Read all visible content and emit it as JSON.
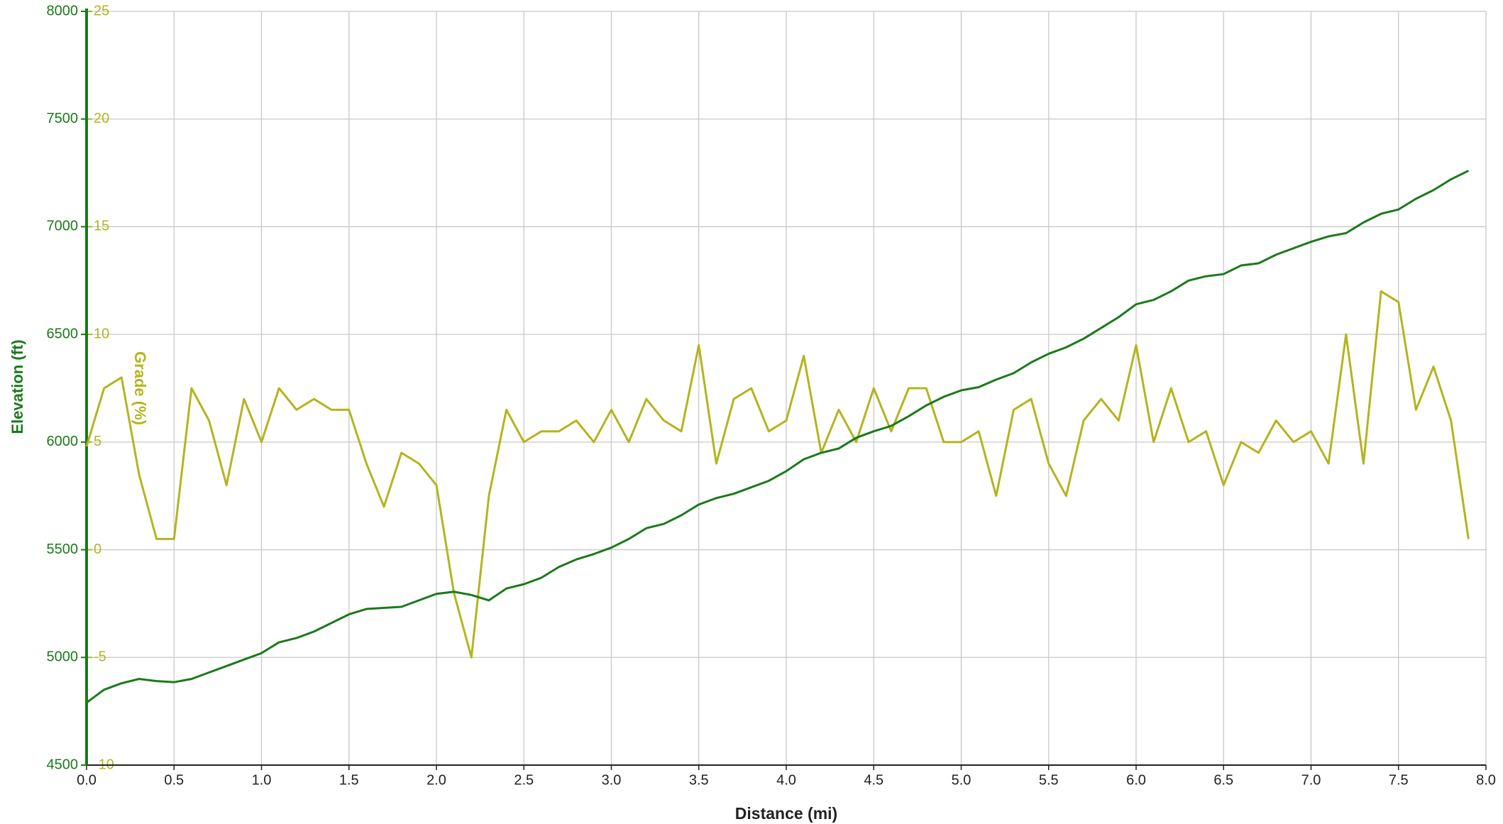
{
  "chart_data": {
    "type": "line",
    "xlabel": "Distance (mi)",
    "ylabel": "Elevation (ft)",
    "y2label": "Grade (%)",
    "grid": true,
    "x": [
      0.0,
      0.1,
      0.2,
      0.3,
      0.4,
      0.5,
      0.6,
      0.7,
      0.8,
      0.9,
      1.0,
      1.1,
      1.2,
      1.3,
      1.4,
      1.5,
      1.6,
      1.7,
      1.8,
      1.9,
      2.0,
      2.1,
      2.2,
      2.3,
      2.4,
      2.5,
      2.6,
      2.7,
      2.8,
      2.9,
      3.0,
      3.1,
      3.2,
      3.3,
      3.4,
      3.5,
      3.6,
      3.7,
      3.8,
      3.9,
      4.0,
      4.1,
      4.2,
      4.3,
      4.4,
      4.5,
      4.6,
      4.7,
      4.8,
      4.9,
      5.0,
      5.1,
      5.2,
      5.3,
      5.4,
      5.5,
      5.6,
      5.7,
      5.8,
      5.9,
      6.0,
      6.1,
      6.2,
      6.3,
      6.4,
      6.5,
      6.6,
      6.7,
      6.8,
      6.9,
      7.0,
      7.1,
      7.2,
      7.3,
      7.4,
      7.5,
      7.6,
      7.7,
      7.8,
      7.9
    ],
    "series": [
      {
        "name": "Elevation",
        "color": "#1a7a1a",
        "axis": "y",
        "values": [
          4790,
          4850,
          4880,
          4900,
          4890,
          4885,
          4900,
          4930,
          4960,
          4990,
          5020,
          5070,
          5090,
          5120,
          5160,
          5200,
          5225,
          5230,
          5235,
          5265,
          5295,
          5305,
          5290,
          5265,
          5320,
          5340,
          5370,
          5420,
          5455,
          5480,
          5510,
          5550,
          5600,
          5620,
          5660,
          5710,
          5740,
          5760,
          5790,
          5820,
          5865,
          5920,
          5950,
          5970,
          6020,
          6050,
          6075,
          6120,
          6170,
          6210,
          6240,
          6255,
          6290,
          6320,
          6370,
          6410,
          6440,
          6480,
          6530,
          6580,
          6640,
          6660,
          6700,
          6750,
          6770,
          6780,
          6820,
          6830,
          6870,
          6900,
          6930,
          6955,
          6970,
          7020,
          7060,
          7080,
          7130,
          7170,
          7220,
          7260
        ]
      },
      {
        "name": "Grade",
        "color": "#b4b41e",
        "axis": "y2",
        "values": [
          4.8,
          7.5,
          8.0,
          3.5,
          0.5,
          0.5,
          7.5,
          6.0,
          3.0,
          7.0,
          5.0,
          7.5,
          6.5,
          7.0,
          6.5,
          6.5,
          4.0,
          2.0,
          4.5,
          4.0,
          3.0,
          -2.0,
          -5.0,
          2.5,
          6.5,
          5.0,
          5.5,
          5.5,
          6.0,
          5.0,
          6.5,
          5.0,
          7.0,
          6.0,
          5.5,
          9.5,
          4.0,
          7.0,
          7.5,
          5.5,
          6.0,
          9.0,
          4.5,
          6.5,
          5.0,
          7.5,
          5.5,
          7.5,
          7.5,
          5.0,
          5.0,
          5.5,
          2.5,
          6.5,
          7.0,
          4.0,
          2.5,
          6.0,
          7.0,
          6.0,
          9.5,
          5.0,
          7.5,
          5.0,
          5.5,
          3.0,
          5.0,
          4.5,
          6.0,
          5.0,
          5.5,
          4.0,
          10.0,
          4.0,
          12.0,
          11.5,
          6.5,
          8.5,
          6.0,
          0.5
        ]
      }
    ],
    "xlim": [
      0,
      8
    ],
    "xticks": [
      {
        "value": 0,
        "label": "0.0"
      },
      {
        "value": 0.5,
        "label": "0.5"
      },
      {
        "value": 1,
        "label": "1.0"
      },
      {
        "value": 1.5,
        "label": "1.5"
      },
      {
        "value": 2,
        "label": "2.0"
      },
      {
        "value": 2.5,
        "label": "2.5"
      },
      {
        "value": 3,
        "label": "3.0"
      },
      {
        "value": 3.5,
        "label": "3.5"
      },
      {
        "value": 4,
        "label": "4.0"
      },
      {
        "value": 4.5,
        "label": "4.5"
      },
      {
        "value": 5,
        "label": "5.0"
      },
      {
        "value": 5.5,
        "label": "5.5"
      },
      {
        "value": 6,
        "label": "6.0"
      },
      {
        "value": 6.5,
        "label": "6.5"
      },
      {
        "value": 7,
        "label": "7.0"
      },
      {
        "value": 7.5,
        "label": "7.5"
      },
      {
        "value": 8,
        "label": "8.0"
      }
    ],
    "ylim": [
      4500,
      8000
    ],
    "yticks": [
      4500,
      5000,
      5500,
      6000,
      6500,
      7000,
      7500,
      8000
    ],
    "y2lim": [
      -10,
      25
    ],
    "y2ticks": [
      -10,
      -5,
      0,
      5,
      10,
      15,
      20,
      25
    ]
  }
}
